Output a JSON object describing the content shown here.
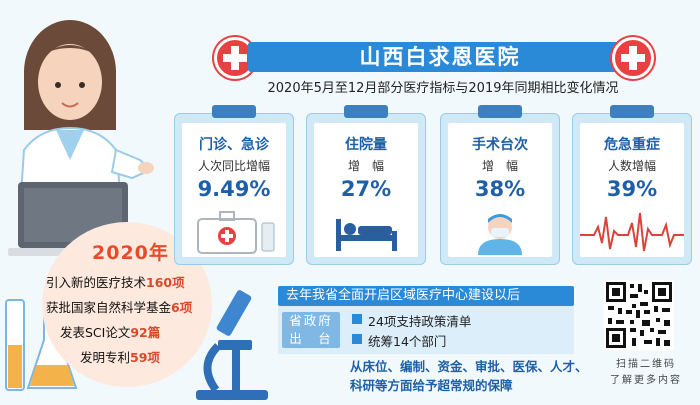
{
  "header": {
    "hospital_name": "山西白求恩医院",
    "subtitle": "2020年5月至12月部分医疗指标与2019年同期相比变化情况",
    "accent_color": "#2b8ad8",
    "cross_color": "#e84142"
  },
  "cards": [
    {
      "title": "门诊、急诊",
      "label": "人次同比增幅",
      "value": "9.49%",
      "icon": "medical-kit-icon"
    },
    {
      "title": "住院量",
      "label": "增　幅",
      "value": "27%",
      "icon": "hospital-bed-icon"
    },
    {
      "title": "手术台次",
      "label": "增　幅",
      "value": "38%",
      "icon": "surgeon-icon"
    },
    {
      "title": "危急重症",
      "label": "人数增幅",
      "value": "39%",
      "icon": "heartbeat-line-icon"
    }
  ],
  "stats": {
    "year": "2020年",
    "items": [
      {
        "text": "引入新的医疗技术",
        "num": "160项"
      },
      {
        "text": "获批国家自然科学基金",
        "num": "6项"
      },
      {
        "text": "发表SCI论文",
        "num": "92篇"
      },
      {
        "text": "发明专利",
        "num": "59项"
      }
    ]
  },
  "policy": {
    "heading": "去年我省全面开启区域医疗中心建设以后",
    "gov_label_line1": "省政府",
    "gov_label_line2": "出　台",
    "items": [
      "24项支持政策清单",
      "统筹14个部门"
    ],
    "description": "从床位、编制、资金、审批、医保、人才、科研等方面给予超常规的保障"
  },
  "qr": {
    "caption_line1": "扫描二维码",
    "caption_line2": "了解更多内容"
  }
}
